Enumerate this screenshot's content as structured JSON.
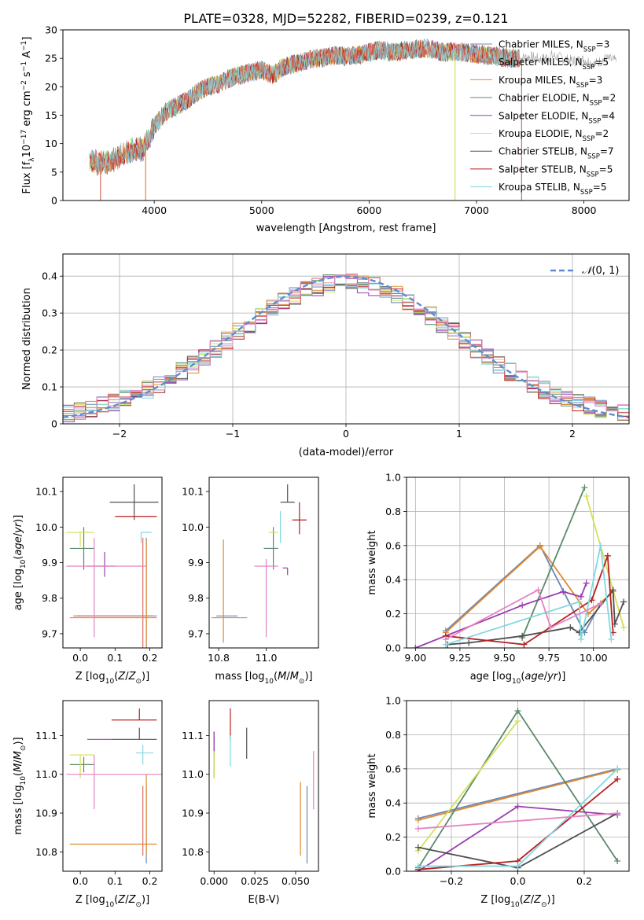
{
  "title": "PLATE=0328, MJD=52282, FIBERID=0239, z=0.121",
  "models": [
    {
      "name": "Chabrier MILES",
      "n": "3",
      "color": "#6b87b8"
    },
    {
      "name": "Salpeter MILES",
      "n": "5",
      "color": "#d96d62"
    },
    {
      "name": "Kroupa MILES",
      "n": "3",
      "color": "#e08a2e"
    },
    {
      "name": "Chabrier ELODIE",
      "n": "2",
      "color": "#5a8a6a"
    },
    {
      "name": "Salpeter ELODIE",
      "n": "4",
      "color": "#9a3cb0"
    },
    {
      "name": "Kroupa ELODIE",
      "n": "2",
      "color": "#d2e05a"
    },
    {
      "name": "Chabrier STELIB",
      "n": "7",
      "color": "#505050"
    },
    {
      "name": "Salpeter STELIB",
      "n": "5",
      "color": "#b81f1f"
    },
    {
      "name": "Kroupa STELIB",
      "n": "5",
      "color": "#82d8e0"
    }
  ],
  "extra_colors": {
    "pink": "#e484c0",
    "normal": "#5a8ed0"
  },
  "chart_data": [
    {
      "type": "line",
      "id": "spectrum",
      "xlabel": "wavelength [Angstrom, rest frame]",
      "ylabel": "Flux [f_λ10^-17 erg cm^-2 s^-1 A^-1]",
      "xlim": [
        3150,
        8420
      ],
      "ylim": [
        0,
        30
      ],
      "xticks": [
        4000,
        5000,
        6000,
        7000,
        8000
      ],
      "yticks": [
        0,
        5,
        10,
        15,
        20,
        25,
        30
      ],
      "legend": "top-right",
      "grid": false,
      "envelope": [
        [
          3400,
          7.0
        ],
        [
          3500,
          6.5
        ],
        [
          3600,
          7.0
        ],
        [
          3700,
          8.0
        ],
        [
          3800,
          9.0
        ],
        [
          3900,
          9.0
        ],
        [
          4000,
          13.0
        ],
        [
          4100,
          15.5
        ],
        [
          4200,
          16.5
        ],
        [
          4300,
          17.5
        ],
        [
          4400,
          19.0
        ],
        [
          4500,
          20.0
        ],
        [
          4600,
          20.5
        ],
        [
          4700,
          21.5
        ],
        [
          4800,
          22.0
        ],
        [
          4900,
          22.5
        ],
        [
          5000,
          23.0
        ],
        [
          5100,
          22.0
        ],
        [
          5200,
          23.5
        ],
        [
          5300,
          24.0
        ],
        [
          5400,
          24.5
        ],
        [
          5500,
          25.0
        ],
        [
          5600,
          25.2
        ],
        [
          5700,
          25.5
        ],
        [
          5800,
          25.3
        ],
        [
          5900,
          25.5
        ],
        [
          6000,
          26.0
        ],
        [
          6100,
          26.5
        ],
        [
          6200,
          26.0
        ],
        [
          6300,
          26.3
        ],
        [
          6400,
          26.5
        ],
        [
          6500,
          26.8
        ],
        [
          6600,
          26.5
        ],
        [
          6700,
          26.0
        ],
        [
          6800,
          26.2
        ],
        [
          6900,
          26.0
        ],
        [
          7000,
          25.8
        ],
        [
          7100,
          25.5
        ],
        [
          7200,
          25.3
        ],
        [
          7300,
          25.0
        ],
        [
          7400,
          25.0
        ]
      ],
      "grey_extension": [
        [
          7400,
          25.0
        ],
        [
          7500,
          25.3
        ],
        [
          7600,
          24.8
        ],
        [
          7700,
          25.5
        ],
        [
          7800,
          25.0
        ],
        [
          7900,
          24.5
        ],
        [
          8000,
          24.8
        ],
        [
          8100,
          24.0
        ],
        [
          8200,
          25.0
        ],
        [
          8300,
          24.5
        ]
      ],
      "dropouts": [
        {
          "x": 3500,
          "y": 0,
          "model": 1
        },
        {
          "x": 3920,
          "y": 0,
          "model": 2
        },
        {
          "x": 6800,
          "y": 0,
          "model": 5
        },
        {
          "x": 7420,
          "y": 0,
          "model": 1
        }
      ]
    },
    {
      "type": "histogram",
      "id": "residuals",
      "xlabel": "(data-model)/error",
      "ylabel": "Normed distribution",
      "xlim": [
        -2.5,
        2.5
      ],
      "ylim": [
        0,
        0.46
      ],
      "xticks": [
        -2,
        -1,
        0,
        1,
        2
      ],
      "yticks": [
        0.0,
        0.1,
        0.2,
        0.3,
        0.4
      ],
      "bin_width": 0.1,
      "reference_curve": "N(0,1)",
      "legend": "top-right",
      "grid": true
    },
    {
      "type": "errorbar",
      "id": "age_vs_Z",
      "xlabel": "Z [log10(Z/Z⊙)]",
      "ylabel": "age [log10(age/yr)]",
      "xlim": [
        -0.05,
        0.235
      ],
      "ylim": [
        9.66,
        10.14
      ],
      "xticks": [
        0.0,
        0.1,
        0.2
      ],
      "yticks": [
        9.7,
        9.8,
        9.9,
        10.0,
        10.1
      ],
      "points": [
        {
          "model": 0,
          "x": 0.19,
          "y": 9.75,
          "xerr": [
            0.2,
            0.03
          ],
          "yerr": [
            0.2,
            0.22
          ]
        },
        {
          "model": 1,
          "x": 0.18,
          "y": 9.75,
          "xerr": [
            0.2,
            0.03
          ],
          "yerr": [
            0.2,
            0.22
          ]
        },
        {
          "model": 2,
          "x": 0.19,
          "y": 9.745,
          "xerr": [
            0.22,
            0.03
          ],
          "yerr": [
            0.1,
            0.22
          ]
        },
        {
          "model": 3,
          "x": 0.01,
          "y": 9.94,
          "xerr": [
            0.04,
            0.03
          ],
          "yerr": [
            0.06,
            0.06
          ]
        },
        {
          "model": 4,
          "x": 0.07,
          "y": 9.89,
          "xerr": [
            0.05,
            0.03
          ],
          "yerr": [
            0.03,
            0.04
          ]
        },
        {
          "model": 5,
          "x": 0.0,
          "y": 9.985,
          "xerr": [
            0.04,
            0.04
          ],
          "yerr": [
            0.04,
            0.0
          ]
        },
        {
          "model": 6,
          "x": 0.155,
          "y": 10.07,
          "xerr": [
            0.07,
            0.07
          ],
          "yerr": [
            0.05,
            0.05
          ]
        },
        {
          "model": 7,
          "x": 0.18,
          "y": 10.03,
          "xerr": [
            0.08,
            0.04
          ],
          "yerr": [
            0.0,
            0.0
          ]
        },
        {
          "model": 8,
          "x": 0.175,
          "y": 9.985,
          "xerr": [
            0.0,
            0.03
          ],
          "yerr": [
            0.03,
            0.0
          ]
        },
        {
          "model": "pink",
          "x": 0.04,
          "y": 9.89,
          "xerr": [
            0.08,
            0.15
          ],
          "yerr": [
            0.2,
            0.08
          ]
        }
      ]
    },
    {
      "type": "errorbar",
      "id": "age_vs_mass",
      "xlabel": "mass [log10(M/M⊙)]",
      "ylabel": "",
      "xlim": [
        10.76,
        11.22
      ],
      "ylim": [
        9.66,
        10.14
      ],
      "xticks": [
        10.8,
        11.0
      ],
      "yticks": [
        9.7,
        9.8,
        9.9,
        10.0,
        10.1
      ],
      "points": [
        {
          "model": 0,
          "x": 10.88,
          "y": 9.75,
          "xerr": [
            0.09,
            0.0
          ],
          "yerr": [
            0.0,
            0.0
          ]
        },
        {
          "model": 2,
          "x": 10.82,
          "y": 9.745,
          "xerr": [
            0.05,
            0.1
          ],
          "yerr": [
            0.07,
            0.22
          ]
        },
        {
          "model": 3,
          "x": 11.03,
          "y": 9.94,
          "xerr": [
            0.04,
            0.02
          ],
          "yerr": [
            0.06,
            0.06
          ]
        },
        {
          "model": 4,
          "x": 11.09,
          "y": 9.885,
          "xerr": [
            0.02,
            0.0
          ],
          "yerr": [
            0.02,
            0.0
          ]
        },
        {
          "model": 5,
          "x": 11.05,
          "y": 9.985,
          "xerr": [
            0.04,
            0.0
          ],
          "yerr": [
            0.0,
            0.0
          ]
        },
        {
          "model": 6,
          "x": 11.09,
          "y": 10.07,
          "xerr": [
            0.03,
            0.03
          ],
          "yerr": [
            0.0,
            0.05
          ]
        },
        {
          "model": 7,
          "x": 11.14,
          "y": 10.02,
          "xerr": [
            0.03,
            0.03
          ],
          "yerr": [
            0.04,
            0.05
          ]
        },
        {
          "model": 8,
          "x": 11.06,
          "y": 9.985,
          "xerr": [
            0.0,
            0.0
          ],
          "yerr": [
            0.03,
            0.06
          ]
        },
        {
          "model": "pink",
          "x": 11.0,
          "y": 9.89,
          "xerr": [
            0.05,
            0.05
          ],
          "yerr": [
            0.2,
            0.02
          ]
        }
      ]
    },
    {
      "type": "line",
      "id": "weight_vs_age",
      "xlabel": "age [log10(age/yr)]",
      "ylabel": "mass weight",
      "xlim": [
        8.95,
        10.2
      ],
      "ylim": [
        0,
        1
      ],
      "xticks": [
        9.0,
        9.25,
        9.5,
        9.75,
        10.0
      ],
      "yticks": [
        0.0,
        0.2,
        0.4,
        0.6,
        0.8,
        1.0
      ],
      "grid": true,
      "series": [
        {
          "model": 0,
          "x": [
            9.17,
            9.7,
            9.95,
            10.04
          ],
          "y": [
            0.1,
            0.6,
            0.09,
            0.26
          ]
        },
        {
          "model": 2,
          "x": [
            9.17,
            9.7,
            9.97,
            10.11
          ],
          "y": [
            0.09,
            0.595,
            0.2,
            0.33
          ]
        },
        {
          "model": 3,
          "x": [
            9.6,
            9.95
          ],
          "y": [
            0.06,
            0.94
          ]
        },
        {
          "model": 4,
          "x": [
            9.0,
            9.6,
            9.83,
            9.93,
            9.96
          ],
          "y": [
            0.0,
            0.25,
            0.33,
            0.3,
            0.38
          ]
        },
        {
          "model": 5,
          "x": [
            9.96,
            10.17
          ],
          "y": [
            0.89,
            0.12
          ]
        },
        {
          "model": 6,
          "x": [
            9.18,
            9.3,
            9.6,
            9.87,
            9.92,
            10.11,
            10.12,
            10.17
          ],
          "y": [
            0.02,
            0.03,
            0.07,
            0.12,
            0.09,
            0.34,
            0.14,
            0.27
          ]
        },
        {
          "model": 7,
          "x": [
            9.17,
            9.61,
            9.99,
            10.08,
            10.11
          ],
          "y": [
            0.07,
            0.02,
            0.28,
            0.54,
            0.09
          ]
        },
        {
          "model": 8,
          "x": [
            9.17,
            9.92,
            9.93,
            10.04,
            10.1
          ],
          "y": [
            0.02,
            0.27,
            0.05,
            0.6,
            0.05
          ]
        },
        {
          "model": "pink",
          "x": [
            9.17,
            9.69,
            9.76,
            10.04
          ],
          "y": [
            0.05,
            0.34,
            0.12,
            0.26
          ]
        }
      ]
    },
    {
      "type": "errorbar",
      "id": "mass_vs_Z",
      "xlabel": "Z [log10(Z/Z⊙)]",
      "ylabel": "mass [log10(M/M⊙)]",
      "xlim": [
        -0.05,
        0.235
      ],
      "ylim": [
        10.75,
        11.19
      ],
      "xticks": [
        0.0,
        0.1,
        0.2
      ],
      "yticks": [
        10.8,
        10.9,
        11.0,
        11.1
      ],
      "points": [
        {
          "model": 0,
          "x": 0.19,
          "y": 10.89,
          "xerr": [
            0.0,
            0.0
          ],
          "yerr": [
            0.12,
            0.08
          ]
        },
        {
          "model": 1,
          "x": 0.18,
          "y": 10.89,
          "xerr": [
            0.0,
            0.0
          ],
          "yerr": [
            0.1,
            0.08
          ]
        },
        {
          "model": 2,
          "x": 0.19,
          "y": 10.82,
          "xerr": [
            0.22,
            0.03
          ],
          "yerr": [
            0.03,
            0.18
          ]
        },
        {
          "model": 3,
          "x": 0.01,
          "y": 11.025,
          "xerr": [
            0.04,
            0.03
          ],
          "yerr": [
            0.02,
            0.02
          ]
        },
        {
          "model": 4,
          "x": 0.06,
          "y": 11.09,
          "xerr": [
            0.04,
            0.03
          ],
          "yerr": [
            0.0,
            0.0
          ]
        },
        {
          "model": 5,
          "x": 0.0,
          "y": 11.05,
          "xerr": [
            0.03,
            0.04
          ],
          "yerr": [
            0.06,
            0.0
          ]
        },
        {
          "model": 6,
          "x": 0.17,
          "y": 11.09,
          "xerr": [
            0.08,
            0.05
          ],
          "yerr": [
            0.0,
            0.03
          ]
        },
        {
          "model": 7,
          "x": 0.17,
          "y": 11.14,
          "xerr": [
            0.08,
            0.05
          ],
          "yerr": [
            0.0,
            0.03
          ]
        },
        {
          "model": 8,
          "x": 0.18,
          "y": 11.055,
          "xerr": [
            0.02,
            0.03
          ],
          "yerr": [
            0.03,
            0.02
          ]
        },
        {
          "model": "pink",
          "x": 0.04,
          "y": 11.0,
          "xerr": [
            0.08,
            0.2
          ],
          "yerr": [
            0.09,
            0.05
          ]
        }
      ]
    },
    {
      "type": "errorbar",
      "id": "mass_vs_EBV",
      "xlabel": "E(B-V)",
      "ylabel": "",
      "xlim": [
        -0.003,
        0.064
      ],
      "ylim": [
        10.75,
        11.19
      ],
      "xticks": [
        0.0,
        0.025,
        0.05
      ],
      "yticks": [
        10.8,
        10.9,
        11.0,
        11.1
      ],
      "points": [
        {
          "model": 0,
          "x": 0.057,
          "y": 10.87,
          "xerr": [
            0,
            0
          ],
          "yerr": [
            0.1,
            0.1
          ]
        },
        {
          "model": 2,
          "x": 0.053,
          "y": 10.88,
          "xerr": [
            0,
            0
          ],
          "yerr": [
            0.09,
            0.1
          ]
        },
        {
          "model": 3,
          "x": 0.0,
          "y": 11.05,
          "xerr": [
            0,
            0
          ],
          "yerr": [
            0.06,
            0.06
          ]
        },
        {
          "model": 4,
          "x": 0.0,
          "y": 11.09,
          "xerr": [
            0,
            0
          ],
          "yerr": [
            0.04,
            0.02
          ]
        },
        {
          "model": 5,
          "x": 0.0,
          "y": 11.03,
          "xerr": [
            0,
            0
          ],
          "yerr": [
            0.04,
            0.03
          ]
        },
        {
          "model": 6,
          "x": 0.02,
          "y": 11.08,
          "xerr": [
            0,
            0
          ],
          "yerr": [
            0.04,
            0.04
          ]
        },
        {
          "model": 7,
          "x": 0.01,
          "y": 11.13,
          "xerr": [
            0,
            0
          ],
          "yerr": [
            0.04,
            0.04
          ]
        },
        {
          "model": 8,
          "x": 0.01,
          "y": 11.06,
          "xerr": [
            0,
            0
          ],
          "yerr": [
            0.04,
            0.04
          ]
        },
        {
          "model": "pink",
          "x": 0.061,
          "y": 10.98,
          "xerr": [
            0,
            0
          ],
          "yerr": [
            0.07,
            0.08
          ]
        }
      ]
    },
    {
      "type": "line",
      "id": "weight_vs_Z",
      "xlabel": "Z [log10(Z/Z⊙)]",
      "ylabel": "mass weight",
      "xlim": [
        -0.335,
        0.335
      ],
      "ylim": [
        0,
        1
      ],
      "xticks": [
        -0.2,
        0.0,
        0.2
      ],
      "yticks": [
        0.0,
        0.2,
        0.4,
        0.6,
        0.8,
        1.0
      ],
      "grid": true,
      "series": [
        {
          "model": 0,
          "x": [
            -0.3,
            0.3
          ],
          "y": [
            0.31,
            0.6
          ]
        },
        {
          "model": 2,
          "x": [
            -0.3,
            0.3
          ],
          "y": [
            0.3,
            0.595
          ]
        },
        {
          "model": 3,
          "x": [
            -0.3,
            0.0,
            0.3
          ],
          "y": [
            0.02,
            0.94,
            0.06
          ]
        },
        {
          "model": 4,
          "x": [
            -0.3,
            0.0,
            0.3
          ],
          "y": [
            0.0,
            0.38,
            0.33
          ]
        },
        {
          "model": 5,
          "x": [
            -0.3,
            0.0
          ],
          "y": [
            0.12,
            0.88
          ]
        },
        {
          "model": 6,
          "x": [
            -0.3,
            0.0,
            0.3
          ],
          "y": [
            0.14,
            0.02,
            0.34
          ]
        },
        {
          "model": 7,
          "x": [
            -0.3,
            0.0,
            0.3
          ],
          "y": [
            0.01,
            0.06,
            0.54
          ]
        },
        {
          "model": 8,
          "x": [
            -0.3,
            0.0,
            0.3
          ],
          "y": [
            0.03,
            0.03,
            0.6
          ]
        },
        {
          "model": "pink",
          "x": [
            -0.3,
            0.3
          ],
          "y": [
            0.25,
            0.34
          ]
        }
      ]
    }
  ]
}
